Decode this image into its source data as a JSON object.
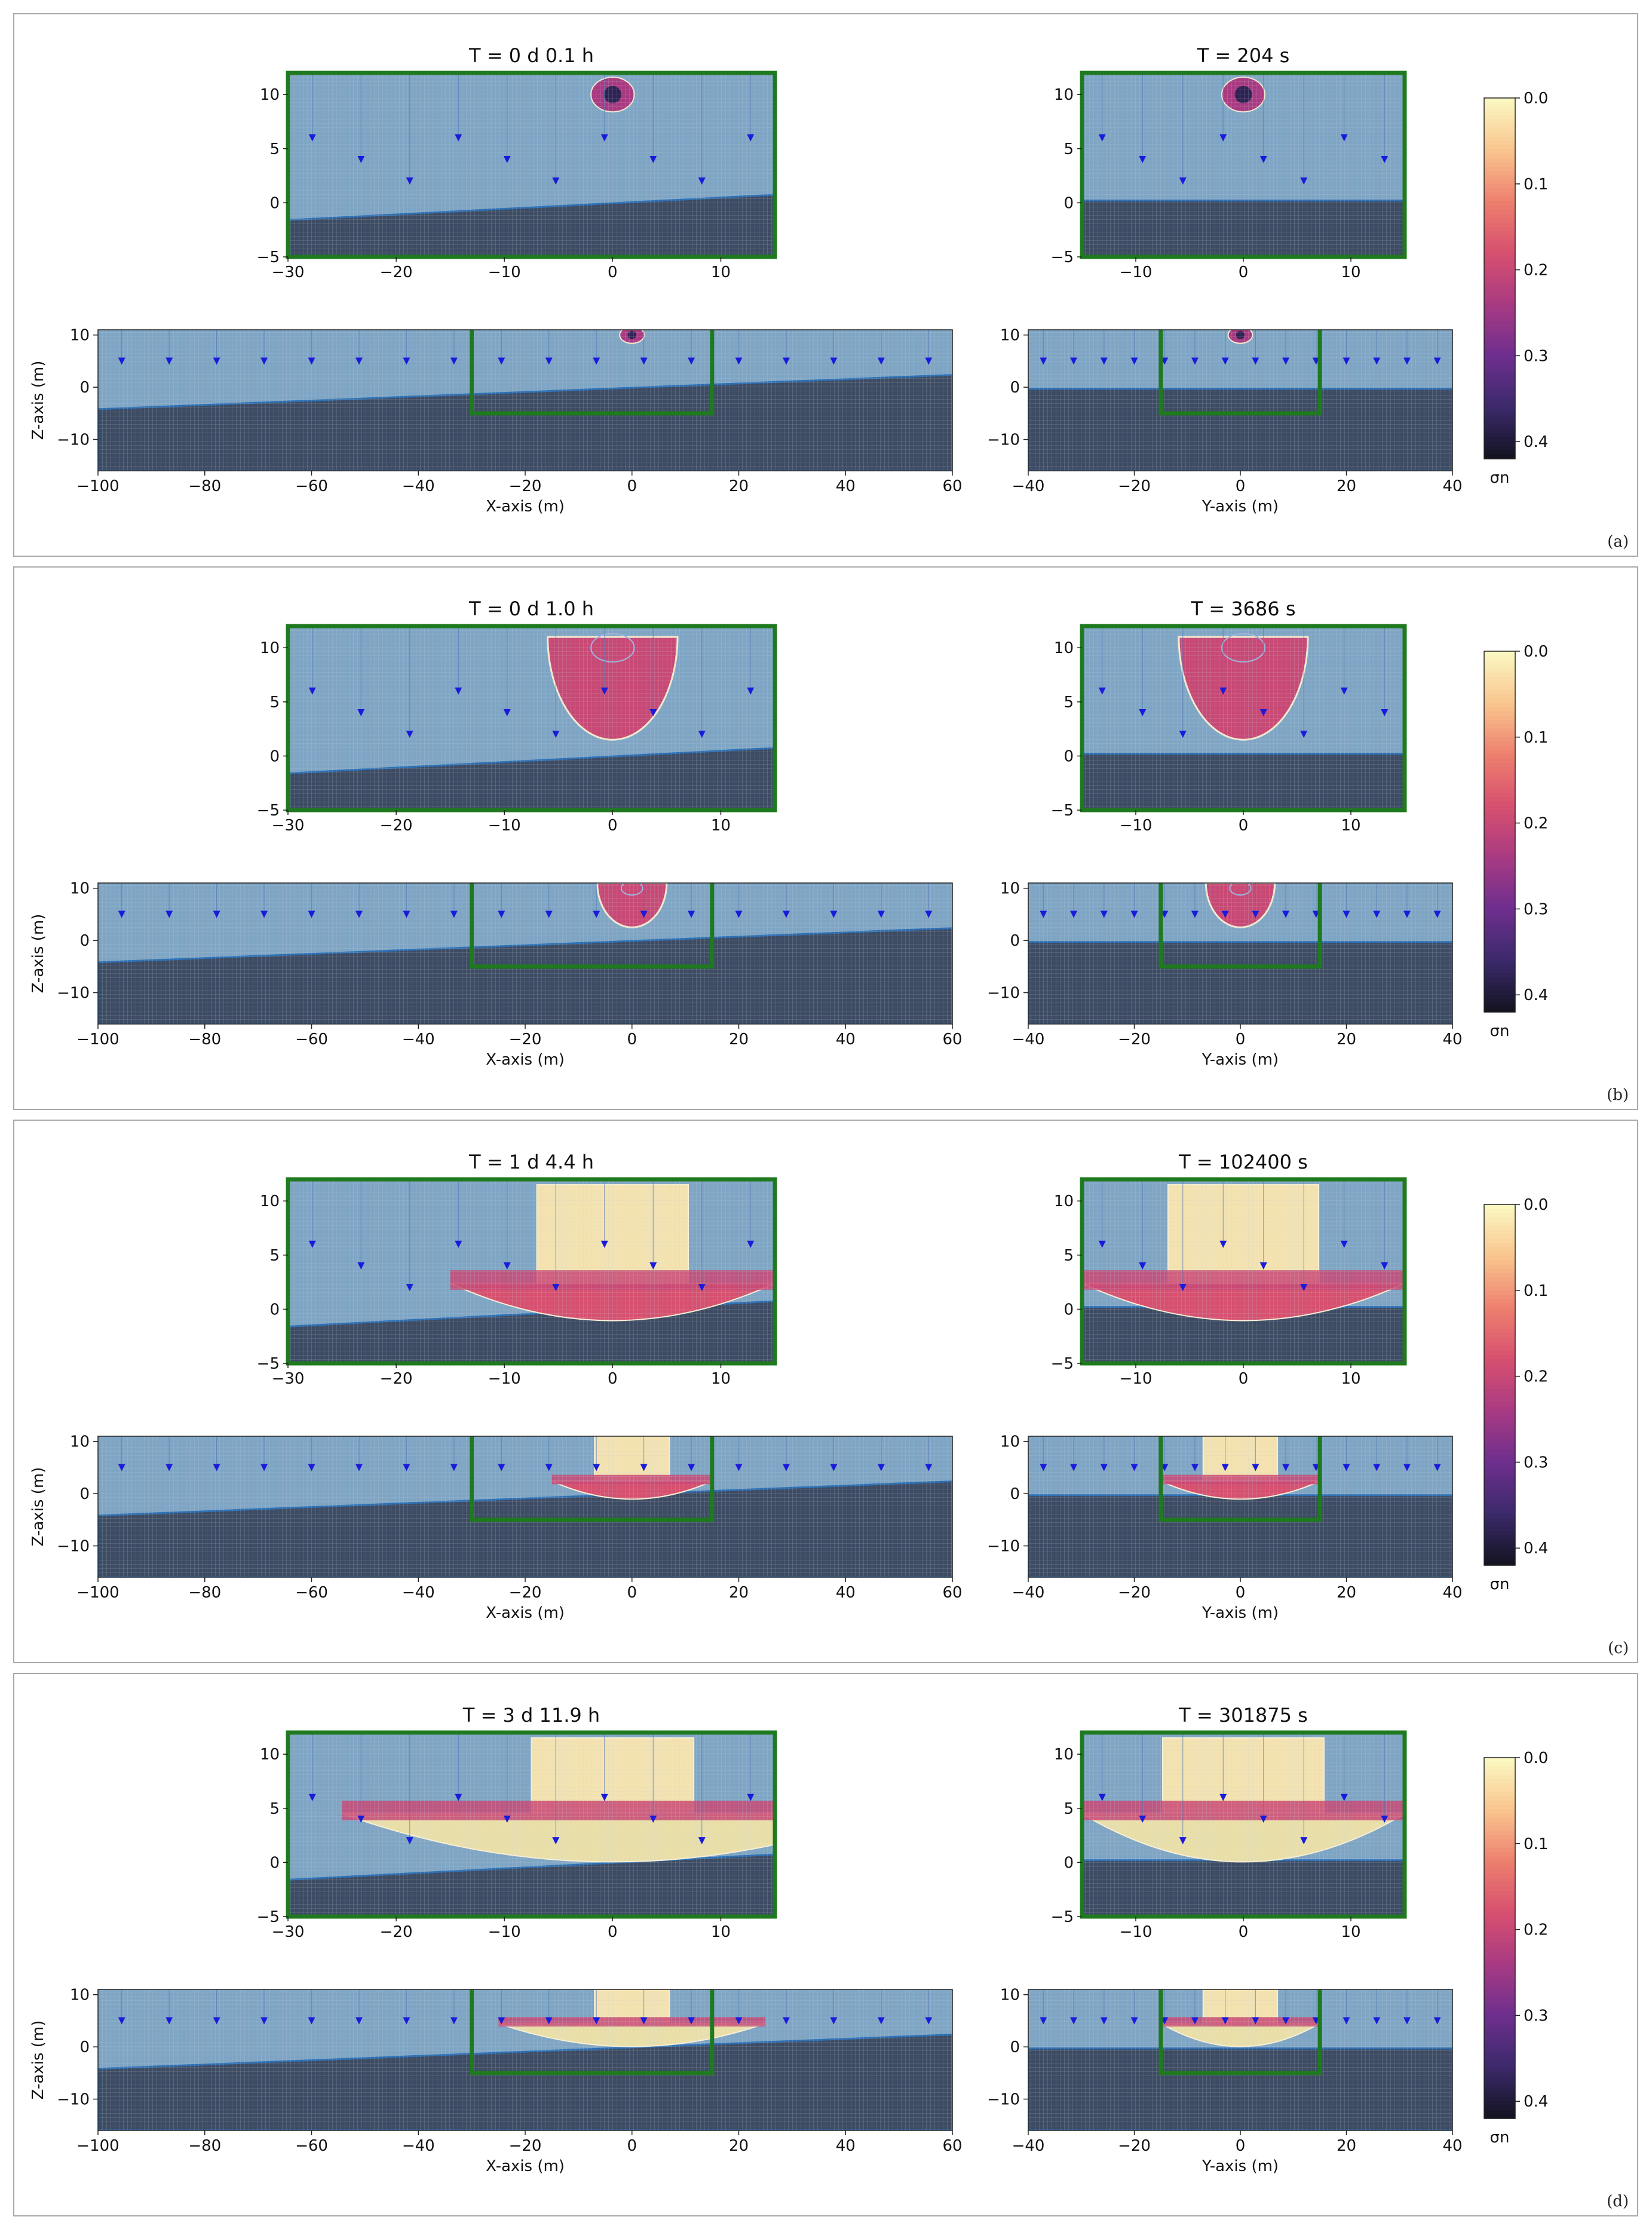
{
  "figure": {
    "panels": [
      {
        "tag": "(a)",
        "title_x": "T = 0 d  0.1 h",
        "title_y": "T = 204 s",
        "stage": 0
      },
      {
        "tag": "(b)",
        "title_x": "T = 0 d  1.0 h",
        "title_y": "T = 3686 s",
        "stage": 1
      },
      {
        "tag": "(c)",
        "title_x": "T = 1 d  4.4 h",
        "title_y": "T = 102400 s",
        "stage": 2
      },
      {
        "tag": "(d)",
        "title_x": "T = 3 d 11.9 h",
        "title_y": "T = 301875 s",
        "stage": 3
      }
    ]
  },
  "chart_data": {
    "type": "heatmap",
    "axes": {
      "x_axis_label": "X-axis (m)",
      "y_axis_label": "Y-axis (m)",
      "z_axis_label": "Z-axis (m)",
      "zoom_x": {
        "xlim": [
          -30,
          15
        ],
        "ylim": [
          -5,
          12
        ],
        "xticks": [
          "−30",
          "−20",
          "−10",
          "0",
          "10"
        ],
        "yticks": [
          "10",
          "5",
          "0",
          "−5"
        ]
      },
      "zoom_y": {
        "xlim": [
          -15,
          15
        ],
        "ylim": [
          -5,
          12
        ],
        "xticks": [
          "−10",
          "0",
          "10"
        ],
        "yticks": [
          "10",
          "5",
          "0",
          "−5"
        ]
      },
      "full_x": {
        "xlim": [
          -100,
          60
        ],
        "ylim": [
          -16,
          11
        ],
        "xticks": [
          "−100",
          "−80",
          "−60",
          "−40",
          "−20",
          "0",
          "20",
          "40",
          "60"
        ],
        "yticks": [
          "10",
          "0",
          "−10"
        ]
      },
      "full_y": {
        "xlim": [
          -40,
          40
        ],
        "ylim": [
          -16,
          11
        ],
        "xticks": [
          "−40",
          "−20",
          "0",
          "20",
          "40"
        ],
        "yticks": [
          "10",
          "0",
          "−10"
        ]
      }
    },
    "colorbar": {
      "label": "σn",
      "ticks": [
        "0.0",
        "0.1",
        "0.2",
        "0.3",
        "0.4"
      ],
      "range": [
        0.0,
        0.42
      ],
      "colormap": [
        "#fbf7c0",
        "#f9c48d",
        "#ed7f6e",
        "#d7506f",
        "#a93a82",
        "#6f2f8f",
        "#3d2a6d",
        "#141423"
      ]
    },
    "zoom_window": {
      "x": [
        -30,
        15
      ],
      "y": [
        -15,
        15
      ],
      "z": [
        -5,
        12
      ]
    },
    "colors": {
      "background_unsaturated": "#7fa5c4",
      "bedrock": "#3d4b63",
      "window_frame": "#1f7a1f",
      "flow_arrow": "#1a1adb",
      "flow_arrow_hot": "#e8202a",
      "contour": "#c9d3e5"
    }
  }
}
